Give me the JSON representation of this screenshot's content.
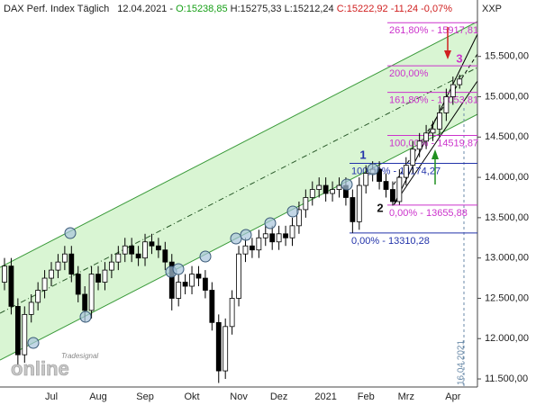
{
  "header": {
    "title": "DAX Perf. Index Täglich",
    "date": "12.04.2021 -",
    "open": "O:15238,85",
    "high": "H:15275,33",
    "low": "L:15212,24",
    "close": "C:15222,92",
    "change": "-11,24",
    "change_pct": "-0,07%"
  },
  "symbol": "XXP",
  "chart_data": {
    "type": "candlestick",
    "categories": [
      null,
      null,
      null,
      null,
      null,
      null,
      null,
      "Jul",
      null,
      null,
      null,
      null,
      null,
      null,
      "Aug",
      null,
      null,
      null,
      null,
      null,
      null,
      "Sep",
      null,
      null,
      null,
      null,
      null,
      null,
      "Okt",
      null,
      null,
      null,
      null,
      null,
      null,
      "Nov",
      null,
      null,
      null,
      null,
      null,
      "Dez",
      null,
      null,
      null,
      null,
      null,
      null,
      "2021",
      null,
      null,
      null,
      null,
      null,
      "Feb",
      null,
      null,
      null,
      null,
      null,
      "Mrz",
      null,
      null,
      null,
      null,
      null,
      null,
      "Apr",
      null
    ],
    "open": [
      12700,
      12900,
      12400,
      11800,
      12300,
      12450,
      12600,
      12750,
      12850,
      12950,
      13050,
      12800,
      12550,
      12350,
      12800,
      12700,
      12850,
      12950,
      13050,
      13150,
      13050,
      13000,
      13200,
      13150,
      13100,
      12950,
      12500,
      12700,
      12650,
      12800,
      12750,
      12600,
      12200,
      11600,
      12150,
      12500,
      13050,
      13150,
      13100,
      13250,
      13300,
      13200,
      13300,
      13250,
      13400,
      13600,
      13750,
      13850,
      13900,
      13800,
      13850,
      13900,
      13750,
      13450,
      13900,
      14050,
      14100,
      13950,
      13850,
      13700,
      14000,
      14150,
      14350,
      14450,
      14550,
      14600,
      14800,
      15000,
      15150
    ],
    "high": [
      13000,
      13000,
      12500,
      12400,
      12550,
      12700,
      12850,
      12950,
      13050,
      13150,
      13150,
      12900,
      12650,
      12900,
      12900,
      12950,
      13050,
      13150,
      13250,
      13250,
      13150,
      13300,
      13300,
      13250,
      13200,
      13050,
      12800,
      12800,
      12900,
      12900,
      12850,
      12700,
      12300,
      12250,
      12600,
      13150,
      13250,
      13250,
      13350,
      13400,
      13400,
      13400,
      13400,
      13500,
      13700,
      13850,
      13950,
      14000,
      14000,
      13950,
      14000,
      14000,
      13850,
      14000,
      14150,
      14200,
      14200,
      14050,
      13950,
      14100,
      14250,
      14450,
      14550,
      14650,
      14700,
      14900,
      15100,
      15250,
      15275
    ],
    "low": [
      12600,
      12300,
      11650,
      11700,
      12200,
      12350,
      12500,
      12650,
      12750,
      12850,
      12700,
      12450,
      12200,
      12250,
      12600,
      12600,
      12750,
      12850,
      12950,
      12950,
      12900,
      12900,
      13050,
      13000,
      12850,
      12350,
      12400,
      12550,
      12550,
      12650,
      12500,
      12100,
      11450,
      11500,
      12050,
      12400,
      12950,
      13000,
      13000,
      13150,
      13100,
      13100,
      13150,
      13150,
      13300,
      13500,
      13650,
      13750,
      13700,
      13700,
      13750,
      13650,
      13310,
      13350,
      13800,
      13950,
      13850,
      13750,
      13650,
      13660,
      13900,
      14050,
      14250,
      14350,
      14450,
      14500,
      14700,
      14900,
      15100
    ],
    "close": [
      12900,
      12400,
      11800,
      12300,
      12450,
      12600,
      12750,
      12850,
      12950,
      13050,
      12800,
      12550,
      12350,
      12800,
      12700,
      12850,
      12950,
      13050,
      13150,
      13050,
      13000,
      13200,
      13150,
      13100,
      12950,
      12500,
      12700,
      12650,
      12800,
      12750,
      12600,
      12200,
      11600,
      12150,
      12500,
      13050,
      13150,
      13100,
      13250,
      13300,
      13200,
      13300,
      13250,
      13400,
      13600,
      13750,
      13850,
      13900,
      13800,
      13850,
      13900,
      13750,
      13450,
      13900,
      14050,
      14100,
      13950,
      13850,
      13700,
      14000,
      14150,
      14350,
      14450,
      14550,
      14600,
      14800,
      15000,
      15150,
      15220
    ],
    "up_color": "#ffffff",
    "down_color": "#000000",
    "ylim": [
      11400,
      16200
    ],
    "yticks": [
      {
        "value": 11500,
        "label": "11.500,00"
      },
      {
        "value": 12000,
        "label": "12.000,00"
      },
      {
        "value": 12500,
        "label": "12.500,00"
      },
      {
        "value": 13000,
        "label": "13.000,00"
      },
      {
        "value": 13500,
        "label": "13.500,00"
      },
      {
        "value": 14000,
        "label": "14.000,00"
      },
      {
        "value": 14500,
        "label": "14.500,00"
      },
      {
        "value": 15000,
        "label": "15.000,00"
      },
      {
        "value": 15500,
        "label": "15.500,00"
      }
    ],
    "fib_levels": [
      {
        "value": 15917.81,
        "label": "261,80% - 15917,81",
        "color": "#cc33cc",
        "group": "magenta"
      },
      {
        "value": 15383.86,
        "label": "200,00%",
        "color": "#cc33cc",
        "group": "magenta"
      },
      {
        "value": 15053.81,
        "label": "161,80% - 15053,81",
        "color": "#cc33cc",
        "group": "magenta"
      },
      {
        "value": 14519.87,
        "label": "100,00% - 14519,87",
        "color": "#cc33cc",
        "group": "magenta"
      },
      {
        "value": 13655.88,
        "label": "0,00% - 13655,88",
        "color": "#cc33cc",
        "group": "magenta"
      },
      {
        "value": 14174.27,
        "label": "100,00% - 14174,27",
        "color": "#2233aa",
        "group": "blue"
      },
      {
        "value": 13310.28,
        "label": "0,00% - 13310,28",
        "color": "#2233aa",
        "group": "blue"
      }
    ],
    "wave_labels": [
      "1",
      "2",
      "3"
    ],
    "date_marker": "16.04.2021"
  },
  "logo": {
    "small": "Tradesignal",
    "big": "online"
  }
}
